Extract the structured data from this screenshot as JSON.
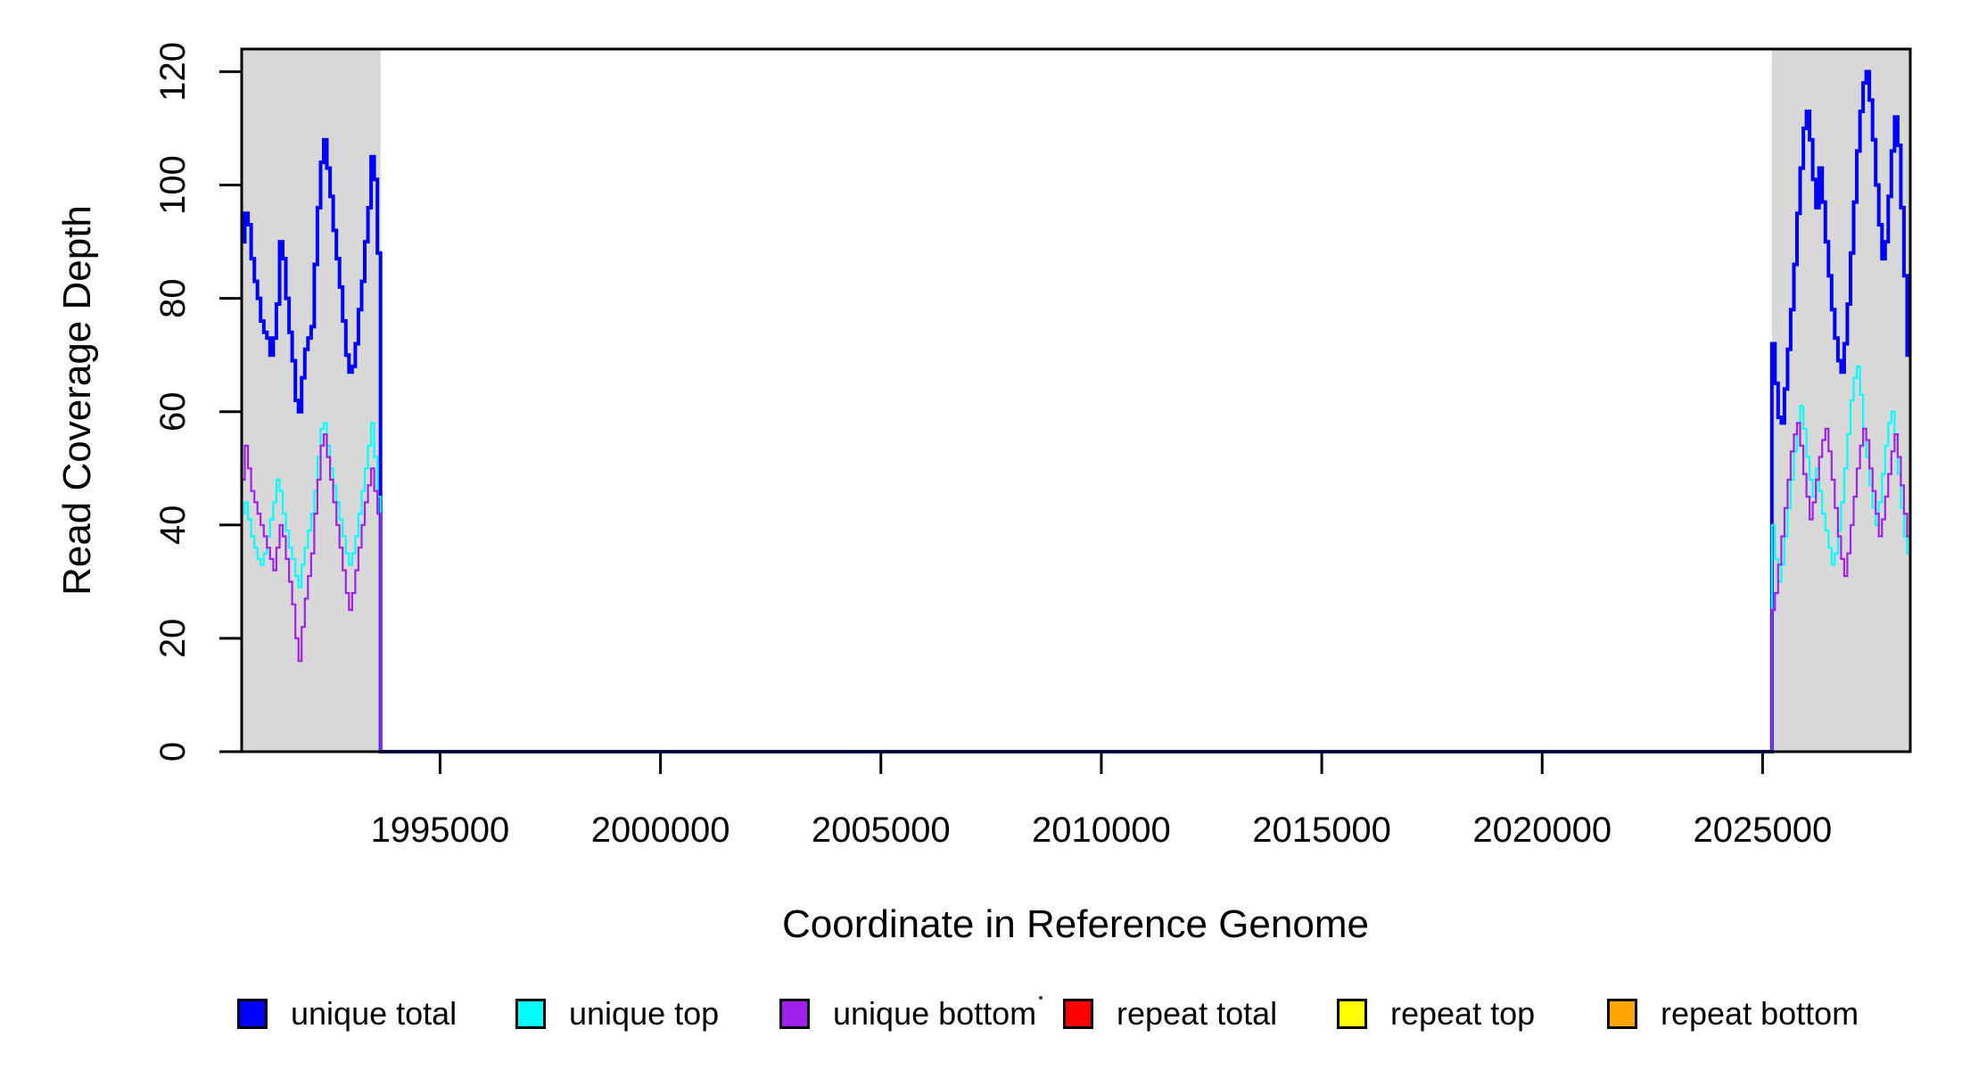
{
  "figure": {
    "background": "#ffffff",
    "plot_background": "#ffffff"
  },
  "chart_data": {
    "type": "line",
    "subtype": "step-coverage-plot",
    "title": "",
    "xlabel": "Coordinate in Reference Genome",
    "ylabel": "Read Coverage Depth",
    "xlim": [
      1990500,
      2028350
    ],
    "ylim": [
      0,
      124
    ],
    "x_ticks": [
      1995000,
      2000000,
      2005000,
      2010000,
      2015000,
      2020000,
      2025000
    ],
    "y_ticks": [
      0,
      20,
      40,
      60,
      80,
      100,
      120
    ],
    "grid": false,
    "box": true,
    "shaded_regions": [
      {
        "name": "left-shaded-region",
        "x0": 1990500,
        "x1": 1993650,
        "color": "#D8D8D8"
      },
      {
        "name": "right-shaded-region",
        "x0": 2025210,
        "x1": 2028350,
        "color": "#D8D8D8"
      }
    ],
    "series": [
      {
        "name": "unique total",
        "color": "#0000FF",
        "line_width": 4,
        "left_region_values": [
          90,
          95,
          93,
          87,
          83,
          80,
          76,
          74,
          73,
          70,
          73,
          79,
          90,
          87,
          80,
          74,
          69,
          62,
          60,
          66,
          71,
          73,
          75,
          86,
          96,
          104,
          108,
          103,
          98,
          92,
          87,
          82,
          76,
          70,
          67,
          68,
          72,
          78,
          83,
          90,
          96,
          105,
          101,
          88
        ],
        "middle_value": 0,
        "right_region_values": [
          72,
          65,
          59,
          58,
          64,
          71,
          78,
          86,
          95,
          103,
          110,
          113,
          108,
          101,
          96,
          103,
          97,
          90,
          84,
          78,
          73,
          69,
          67,
          72,
          79,
          88,
          97,
          106,
          113,
          118,
          120,
          115,
          108,
          100,
          93,
          87,
          90,
          98,
          106,
          112,
          107,
          96,
          84,
          70
        ]
      },
      {
        "name": "unique top",
        "color": "#00FFFF",
        "line_width": 2.2,
        "left_region_values": [
          42,
          44,
          41,
          38,
          36,
          34,
          33,
          35,
          38,
          41,
          44,
          48,
          46,
          42,
          39,
          36,
          34,
          31,
          29,
          33,
          36,
          39,
          42,
          46,
          52,
          57,
          58,
          54,
          50,
          47,
          44,
          41,
          38,
          35,
          33,
          35,
          38,
          42,
          46,
          50,
          54,
          58,
          52,
          45
        ],
        "middle_value": 0,
        "right_region_values": [
          40,
          34,
          30,
          33,
          38,
          43,
          48,
          53,
          58,
          61,
          57,
          52,
          48,
          45,
          50,
          46,
          42,
          39,
          36,
          33,
          35,
          39,
          44,
          50,
          56,
          62,
          66,
          68,
          63,
          57,
          52,
          47,
          43,
          40,
          44,
          49,
          54,
          58,
          60,
          55,
          49,
          43,
          38,
          35
        ]
      },
      {
        "name": "unique bottom",
        "color": "#A020F0",
        "line_width": 2.2,
        "left_region_values": [
          48,
          54,
          50,
          46,
          44,
          42,
          40,
          38,
          36,
          34,
          32,
          36,
          40,
          38,
          34,
          30,
          26,
          20,
          16,
          22,
          27,
          31,
          35,
          42,
          48,
          54,
          56,
          52,
          48,
          44,
          40,
          36,
          32,
          28,
          25,
          28,
          32,
          36,
          40,
          44,
          47,
          50,
          46,
          42
        ],
        "middle_value": 0,
        "right_region_values": [
          25,
          28,
          33,
          38,
          43,
          48,
          53,
          56,
          58,
          54,
          49,
          45,
          41,
          44,
          48,
          52,
          55,
          57,
          53,
          48,
          43,
          38,
          34,
          31,
          35,
          40,
          45,
          50,
          54,
          57,
          55,
          50,
          46,
          42,
          38,
          41,
          45,
          49,
          53,
          56,
          52,
          47,
          42,
          38
        ]
      },
      {
        "name": "repeat total",
        "color": "#FF0000",
        "line_width": 2.2,
        "zero_only_in_shaded_regions": true,
        "value": 0
      },
      {
        "name": "repeat top",
        "color": "#FFFF00",
        "line_width": 2.2,
        "zero_only_in_shaded_regions": true,
        "value": 0
      },
      {
        "name": "repeat bottom",
        "color": "#FFA500",
        "line_width": 2.6,
        "zero_only_in_shaded_regions": true,
        "value": 0
      }
    ],
    "legend_position": "bottom"
  },
  "legend": {
    "items": [
      {
        "label": "unique total",
        "color": "#0000FF"
      },
      {
        "label": "unique top",
        "color": "#00FFFF"
      },
      {
        "label": "unique bottom",
        "color": "#A020F0"
      },
      {
        "label": "repeat total",
        "color": "#FF0000"
      },
      {
        "label": "repeat top",
        "color": "#FFFF00"
      },
      {
        "label": "repeat bottom",
        "color": "#FFA500"
      }
    ]
  }
}
